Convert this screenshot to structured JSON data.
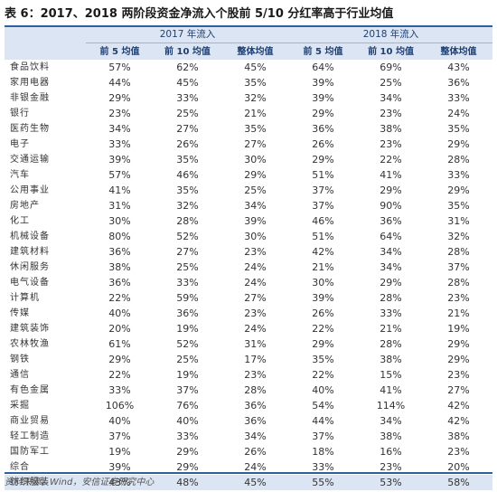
{
  "title": "表 6：2017、2018 两阶段资金净流入个股前 5/10 分红率高于行业均值",
  "groups": [
    "2017 年流入",
    "2018 年流入"
  ],
  "columns": [
    "前 5 均值",
    "前 10 均值",
    "整体均值",
    "前 5 均值",
    "前 10 均值",
    "整体均值"
  ],
  "rows": [
    {
      "name": "食品饮料",
      "values": [
        "57%",
        "62%",
        "45%",
        "64%",
        "69%",
        "43%"
      ]
    },
    {
      "name": "家用电器",
      "values": [
        "44%",
        "45%",
        "35%",
        "39%",
        "25%",
        "36%"
      ]
    },
    {
      "name": "非银金融",
      "values": [
        "29%",
        "33%",
        "32%",
        "39%",
        "34%",
        "33%"
      ]
    },
    {
      "name": "银行",
      "values": [
        "23%",
        "25%",
        "21%",
        "29%",
        "23%",
        "24%"
      ]
    },
    {
      "name": "医药生物",
      "values": [
        "34%",
        "27%",
        "35%",
        "36%",
        "38%",
        "35%"
      ]
    },
    {
      "name": "电子",
      "values": [
        "33%",
        "26%",
        "27%",
        "26%",
        "23%",
        "29%"
      ]
    },
    {
      "name": "交通运输",
      "values": [
        "39%",
        "35%",
        "30%",
        "29%",
        "22%",
        "28%"
      ]
    },
    {
      "name": "汽车",
      "values": [
        "57%",
        "46%",
        "29%",
        "51%",
        "41%",
        "33%"
      ]
    },
    {
      "name": "公用事业",
      "values": [
        "41%",
        "35%",
        "25%",
        "37%",
        "29%",
        "29%"
      ]
    },
    {
      "name": "房地产",
      "values": [
        "31%",
        "32%",
        "34%",
        "37%",
        "90%",
        "35%"
      ]
    },
    {
      "name": "化工",
      "values": [
        "30%",
        "28%",
        "39%",
        "46%",
        "36%",
        "31%"
      ]
    },
    {
      "name": "机械设备",
      "values": [
        "80%",
        "52%",
        "30%",
        "51%",
        "64%",
        "32%"
      ]
    },
    {
      "name": "建筑材料",
      "values": [
        "36%",
        "27%",
        "23%",
        "42%",
        "34%",
        "28%"
      ]
    },
    {
      "name": "休闲服务",
      "values": [
        "38%",
        "25%",
        "24%",
        "21%",
        "34%",
        "37%"
      ]
    },
    {
      "name": "电气设备",
      "values": [
        "36%",
        "33%",
        "24%",
        "30%",
        "29%",
        "28%"
      ]
    },
    {
      "name": "计算机",
      "values": [
        "22%",
        "59%",
        "27%",
        "39%",
        "28%",
        "23%"
      ]
    },
    {
      "name": "传媒",
      "values": [
        "40%",
        "36%",
        "23%",
        "26%",
        "33%",
        "21%"
      ]
    },
    {
      "name": "建筑装饰",
      "values": [
        "20%",
        "19%",
        "24%",
        "22%",
        "21%",
        "19%"
      ]
    },
    {
      "name": "农林牧渔",
      "values": [
        "61%",
        "52%",
        "31%",
        "29%",
        "28%",
        "29%"
      ]
    },
    {
      "name": "钢铁",
      "values": [
        "29%",
        "25%",
        "17%",
        "35%",
        "38%",
        "29%"
      ]
    },
    {
      "name": "通信",
      "values": [
        "22%",
        "19%",
        "23%",
        "22%",
        "15%",
        "23%"
      ]
    },
    {
      "name": "有色金属",
      "values": [
        "33%",
        "37%",
        "28%",
        "40%",
        "41%",
        "27%"
      ]
    },
    {
      "name": "采掘",
      "values": [
        "106%",
        "76%",
        "36%",
        "54%",
        "114%",
        "42%"
      ]
    },
    {
      "name": "商业贸易",
      "values": [
        "40%",
        "40%",
        "36%",
        "44%",
        "34%",
        "42%"
      ]
    },
    {
      "name": "轻工制造",
      "values": [
        "37%",
        "33%",
        "34%",
        "37%",
        "38%",
        "38%"
      ]
    },
    {
      "name": "国防军工",
      "values": [
        "19%",
        "29%",
        "26%",
        "18%",
        "16%",
        "23%"
      ]
    },
    {
      "name": "综合",
      "values": [
        "39%",
        "29%",
        "24%",
        "33%",
        "23%",
        "20%"
      ]
    },
    {
      "name": "纺织服装",
      "values": [
        "43%",
        "48%",
        "45%",
        "55%",
        "53%",
        "58%"
      ]
    }
  ],
  "highlight_row": "纺织服装",
  "source": "资料来源：Wind，安信证券研究中心",
  "colors": {
    "accent": "#2e5f9e",
    "header_bg": "#dbe5f3",
    "header_text": "#1f3f73"
  }
}
